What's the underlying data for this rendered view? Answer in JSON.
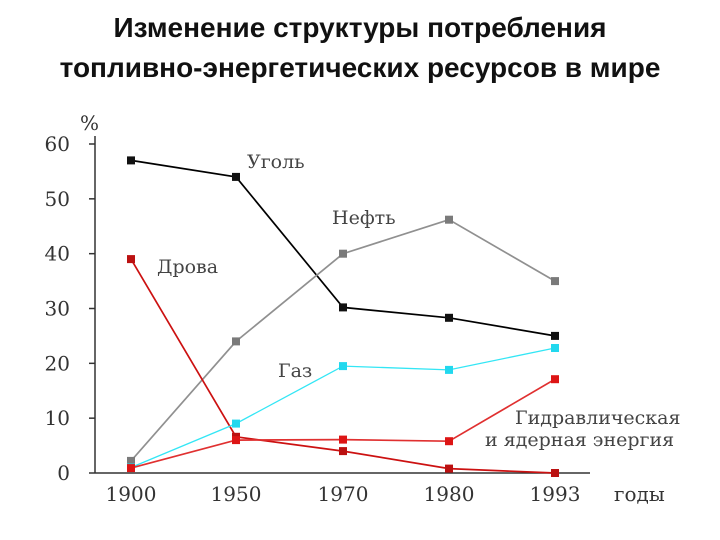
{
  "title_line1": "Изменение структуры потребления",
  "title_line2": "топливно-энергетических ресурсов в мире",
  "chart_data": {
    "type": "line",
    "ylabel": "%",
    "xlabel": "годы",
    "categories": [
      "1900",
      "1950",
      "1970",
      "1980",
      "1993"
    ],
    "ylim": [
      0,
      60
    ],
    "yticks": [
      0,
      10,
      20,
      30,
      40,
      50,
      60
    ],
    "grid": false,
    "series": [
      {
        "name": "Уголь",
        "values": [
          57,
          54,
          30.2,
          28.3,
          25
        ],
        "color": "#000000",
        "marker": "#111111"
      },
      {
        "name": "Нефть",
        "values": [
          2.2,
          24,
          40,
          46.2,
          35
        ],
        "color": "#909090",
        "marker": "#7a7a7a"
      },
      {
        "name": "Дрова",
        "values": [
          39,
          6.6,
          4,
          0.8,
          0
        ],
        "color": "#cc1111",
        "marker": "#bb1111"
      },
      {
        "name": "Газ",
        "values": [
          1,
          9,
          19.5,
          18.8,
          22.8
        ],
        "color": "#33e6f5",
        "marker": "#22d8ee"
      },
      {
        "name": "Гидравлическая и ядерная энергия",
        "values": [
          0.9,
          6,
          6.1,
          5.8,
          17.1
        ],
        "color": "#e03030",
        "marker": "#dd1515"
      }
    ],
    "annotations": {
      "coal": "Уголь",
      "oil": "Нефть",
      "wood": "Дрова",
      "gas": "Газ",
      "hydro_line1": "Гидравлическая",
      "hydro_line2": "и ядерная энергия"
    }
  }
}
